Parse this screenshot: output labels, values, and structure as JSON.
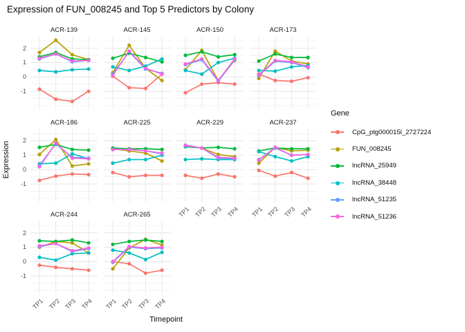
{
  "title": "Expression of FUN_008245 and Top 5 Predictors by Colony",
  "chart_data": {
    "type": "line",
    "faceted": true,
    "facet_variable": "Colony",
    "title": "Expression of FUN_008245 and Top 5 Predictors by Colony",
    "xlabel": "Timepoint",
    "ylabel": "Expression",
    "legend_title": "Gene",
    "legend_position": "right",
    "grid": true,
    "x_categories": [
      "TP1",
      "TP2",
      "TP3",
      "TP4"
    ],
    "y_ticks": [
      2,
      1,
      0,
      -1
    ],
    "ylim": [
      -2.25,
      2.8
    ],
    "series_names": [
      "CpG_ptg000015l_2727224",
      "FUN_008245",
      "lncRNA_25949",
      "lncRNA_38448",
      "lncRNA_51235",
      "lncRNA_51236"
    ],
    "series_colors": [
      "#F8766D",
      "#B79F00",
      "#00BA38",
      "#00BFC4",
      "#619CFF",
      "#F564E3"
    ],
    "facets": [
      {
        "name": "ACR-139",
        "series": [
          [
            -0.85,
            -1.55,
            -1.7,
            -1.0
          ],
          [
            1.7,
            2.55,
            1.55,
            1.2
          ],
          [
            1.4,
            1.7,
            1.25,
            1.2
          ],
          [
            0.45,
            0.35,
            0.5,
            0.55
          ],
          [
            1.25,
            1.6,
            1.05,
            1.15
          ],
          [
            1.3,
            1.6,
            1.1,
            1.15
          ]
        ]
      },
      {
        "name": "ACR-145",
        "series": [
          [
            0.05,
            -0.75,
            -0.8,
            0.2
          ],
          [
            0.3,
            2.2,
            0.6,
            -0.25
          ],
          [
            1.3,
            1.65,
            1.35,
            1.05
          ],
          [
            0.7,
            0.45,
            0.75,
            1.25
          ],
          [
            0.2,
            1.75,
            0.55,
            0.25
          ],
          [
            0.1,
            1.8,
            0.6,
            0.2
          ]
        ]
      },
      {
        "name": "ACR-150",
        "series": [
          [
            -1.1,
            -0.5,
            -0.4,
            -0.5
          ],
          [
            0.5,
            1.85,
            -0.25,
            1.15
          ],
          [
            1.5,
            1.75,
            1.4,
            1.55
          ],
          [
            0.45,
            0.2,
            1.0,
            1.3
          ],
          [
            0.85,
            1.2,
            -0.3,
            1.2
          ],
          [
            0.9,
            1.25,
            -0.25,
            1.25
          ]
        ]
      },
      {
        "name": "ACR-173",
        "series": [
          [
            0.2,
            -0.25,
            -0.3,
            -0.05
          ],
          [
            -0.1,
            1.8,
            1.1,
            0.9
          ],
          [
            1.1,
            1.6,
            1.35,
            1.35
          ],
          [
            0.45,
            0.4,
            0.7,
            0.8
          ],
          [
            0.1,
            1.1,
            1.0,
            0.65
          ],
          [
            0.15,
            1.15,
            1.05,
            0.7
          ]
        ]
      },
      {
        "name": "ACR-186",
        "series": [
          [
            -0.75,
            -0.45,
            -0.3,
            -0.35
          ],
          [
            1.05,
            2.1,
            0.25,
            0.4
          ],
          [
            1.55,
            1.75,
            1.4,
            1.35
          ],
          [
            0.4,
            0.45,
            1.1,
            0.75
          ],
          [
            0.3,
            1.8,
            0.85,
            0.8
          ],
          [
            0.2,
            1.85,
            0.8,
            0.75
          ]
        ]
      },
      {
        "name": "ACR-225",
        "series": [
          [
            -0.2,
            -0.5,
            -0.4,
            -0.4
          ],
          [
            1.45,
            1.3,
            1.15,
            0.6
          ],
          [
            1.5,
            1.45,
            1.45,
            1.4
          ],
          [
            0.45,
            0.7,
            0.7,
            1.0
          ],
          [
            1.4,
            1.4,
            1.3,
            1.1
          ],
          [
            1.4,
            1.4,
            1.3,
            1.15
          ]
        ]
      },
      {
        "name": "ACR-229",
        "series": [
          [
            -0.4,
            -0.6,
            -0.3,
            -0.5
          ],
          [
            1.65,
            1.5,
            1.05,
            0.9
          ],
          [
            1.6,
            1.5,
            1.55,
            1.45
          ],
          [
            0.7,
            0.75,
            0.7,
            0.7
          ],
          [
            1.65,
            1.5,
            0.8,
            0.75
          ],
          [
            1.7,
            1.5,
            0.85,
            0.8
          ]
        ]
      },
      {
        "name": "ACR-237",
        "series": [
          [
            -0.05,
            -0.45,
            -0.2,
            -0.6
          ],
          [
            0.45,
            1.55,
            1.3,
            1.35
          ],
          [
            1.3,
            1.5,
            1.45,
            1.45
          ],
          [
            1.25,
            0.9,
            0.6,
            0.9
          ],
          [
            0.7,
            1.5,
            1.0,
            1.05
          ],
          [
            0.65,
            1.55,
            1.0,
            1.05
          ]
        ]
      },
      {
        "name": "ACR-244",
        "series": [
          [
            -0.25,
            -0.4,
            -0.5,
            -0.6
          ],
          [
            1.0,
            1.4,
            1.3,
            0.6
          ],
          [
            1.45,
            1.4,
            1.5,
            1.3
          ],
          [
            0.3,
            0.1,
            0.55,
            0.6
          ],
          [
            1.05,
            1.25,
            0.7,
            0.9
          ],
          [
            1.1,
            1.25,
            0.75,
            0.95
          ]
        ]
      },
      {
        "name": "ACR-265",
        "series": [
          [
            0.0,
            -0.15,
            -0.8,
            -0.6
          ],
          [
            -0.5,
            0.95,
            1.55,
            1.15
          ],
          [
            1.2,
            1.4,
            1.5,
            1.4
          ],
          [
            0.8,
            0.6,
            0.15,
            0.65
          ],
          [
            -0.05,
            1.0,
            0.9,
            0.95
          ],
          [
            0.0,
            1.05,
            0.95,
            1.0
          ]
        ]
      }
    ]
  }
}
